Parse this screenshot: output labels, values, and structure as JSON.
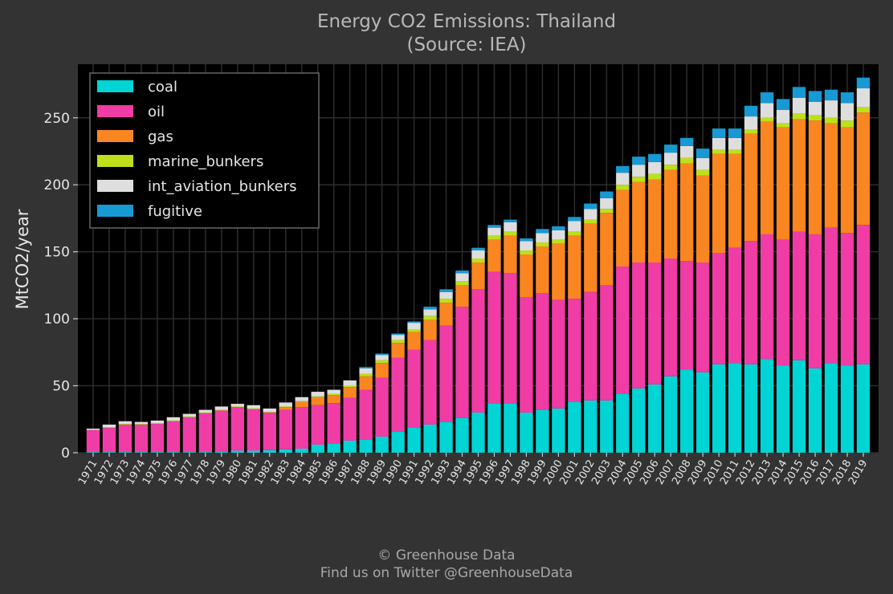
{
  "chart_data": {
    "type": "bar",
    "stacked": true,
    "title": "Energy CO2 Emissions: Thailand",
    "subtitle": "(Source: IEA)",
    "ylabel": "MtCO2/year",
    "xlabel": "",
    "ylim": [
      0,
      290
    ],
    "yticks": [
      0,
      50,
      100,
      150,
      200,
      250
    ],
    "grid": true,
    "legend_position": "top-left",
    "categories": [
      "1971",
      "1972",
      "1973",
      "1974",
      "1975",
      "1976",
      "1977",
      "1978",
      "1979",
      "1980",
      "1981",
      "1982",
      "1983",
      "1984",
      "1985",
      "1986",
      "1987",
      "1988",
      "1989",
      "1990",
      "1991",
      "1992",
      "1993",
      "1994",
      "1995",
      "1996",
      "1997",
      "1998",
      "1999",
      "2000",
      "2001",
      "2002",
      "2003",
      "2004",
      "2005",
      "2006",
      "2007",
      "2008",
      "2009",
      "2010",
      "2011",
      "2012",
      "2013",
      "2014",
      "2015",
      "2016",
      "2017",
      "2018",
      "2019"
    ],
    "series": [
      {
        "name": "coal",
        "color": "#00d4d4",
        "values": [
          0.5,
          0.5,
          0.5,
          0.5,
          0.5,
          0.5,
          0.5,
          0.5,
          1,
          1.5,
          1.5,
          2,
          2.5,
          3,
          6,
          7,
          9,
          10,
          12,
          16,
          19,
          21,
          23,
          26,
          30,
          37,
          37,
          30,
          32,
          33,
          38,
          39,
          39,
          44,
          48,
          51,
          57,
          62,
          60,
          66,
          67,
          66,
          70,
          65,
          69,
          63,
          67,
          65,
          66
        ]
      },
      {
        "name": "oil",
        "color": "#f03ca5",
        "values": [
          16.5,
          18,
          20.5,
          20.5,
          21,
          23,
          26,
          29,
          30.5,
          32.5,
          31,
          28,
          29.5,
          31,
          29.5,
          30,
          32,
          37,
          44,
          55,
          58,
          63,
          72,
          83,
          92,
          98,
          97,
          86,
          87,
          81,
          77,
          81,
          86,
          95,
          94,
          91,
          88,
          81,
          82,
          83,
          86,
          92,
          93,
          94,
          96,
          100,
          101,
          99,
          104
        ]
      },
      {
        "name": "gas",
        "color": "#fa8621",
        "values": [
          0,
          0,
          0,
          0,
          0,
          0,
          0,
          0,
          0,
          0,
          0,
          0,
          2,
          4,
          6,
          6,
          8,
          10,
          11,
          11,
          13,
          15,
          17,
          16,
          20,
          24,
          28,
          32,
          35,
          42,
          47,
          51,
          54,
          57,
          60,
          62,
          66,
          73,
          65,
          74,
          70,
          80,
          84,
          84,
          84,
          85,
          78,
          79,
          84
        ]
      },
      {
        "name": "marine_bunkers",
        "color": "#bde01b",
        "values": [
          0,
          0.5,
          0.5,
          0.5,
          0.5,
          0.5,
          0.5,
          0.5,
          0.5,
          0.5,
          0.5,
          0.5,
          0.5,
          0.5,
          0.5,
          1,
          1,
          2,
          2,
          2,
          2,
          3,
          3,
          3,
          3,
          3,
          3,
          3,
          3,
          3,
          3,
          3,
          3,
          4,
          4,
          4,
          4,
          4,
          4,
          3,
          3,
          3,
          3,
          3,
          4,
          4,
          4,
          5,
          4
        ]
      },
      {
        "name": "int_aviation_bunkers",
        "color": "#dedede",
        "values": [
          1,
          2,
          2,
          1.5,
          2,
          2.5,
          2,
          2,
          2.5,
          2,
          2.5,
          2.5,
          3,
          3,
          3.5,
          3,
          4,
          4,
          4,
          4,
          5,
          5,
          5,
          6,
          6,
          6,
          7,
          7,
          7,
          7,
          8,
          8,
          8,
          9,
          9,
          9,
          9,
          9,
          9,
          9,
          9,
          10,
          11,
          10,
          12,
          10,
          13,
          13,
          14
        ]
      },
      {
        "name": "fugitive",
        "color": "#1799d4",
        "values": [
          0,
          0,
          0,
          0,
          0,
          0,
          0,
          0,
          0,
          0,
          0,
          0,
          0,
          0,
          0,
          0,
          0,
          1,
          1,
          1,
          1,
          2,
          2,
          2,
          2,
          2,
          2,
          2,
          3,
          3,
          3,
          4,
          5,
          5,
          6,
          6,
          6,
          6,
          7,
          7,
          7,
          8,
          8,
          8,
          8,
          8,
          8,
          8,
          8
        ]
      }
    ]
  },
  "footer": {
    "line1": "© Greenhouse Data",
    "line2": "Find us on Twitter @GreenhouseData"
  }
}
